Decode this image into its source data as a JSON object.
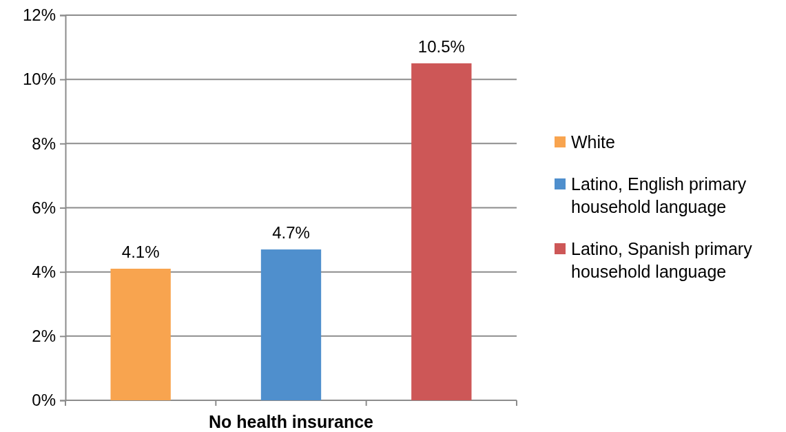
{
  "chart_data": {
    "type": "bar",
    "categories": [
      "No health insurance"
    ],
    "series": [
      {
        "name": "White",
        "color": "#f8a44f",
        "values": [
          4.1
        ],
        "value_labels": [
          "4.1%"
        ]
      },
      {
        "name": "Latino, English primary household language",
        "color": "#4f8fcd",
        "values": [
          4.7
        ],
        "value_labels": [
          "4.7%"
        ]
      },
      {
        "name": "Latino, Spanish primary household language",
        "color": "#cd5757",
        "values": [
          10.5
        ],
        "value_labels": [
          "10.5%"
        ]
      }
    ],
    "ylim": [
      0,
      12
    ],
    "yticks": [
      {
        "value": 0,
        "label": "0%"
      },
      {
        "value": 2,
        "label": "2%"
      },
      {
        "value": 4,
        "label": "4%"
      },
      {
        "value": 6,
        "label": "6%"
      },
      {
        "value": 8,
        "label": "8%"
      },
      {
        "value": 10,
        "label": "10%"
      },
      {
        "value": 12,
        "label": "12%"
      }
    ],
    "grid": "y",
    "legend": "right"
  }
}
